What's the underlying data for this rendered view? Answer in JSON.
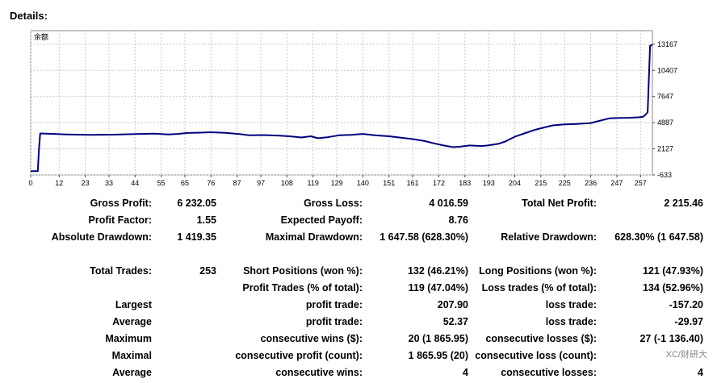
{
  "title": "Details:",
  "chart_data": {
    "type": "line",
    "title": "余额",
    "xlabel": "",
    "ylabel": "",
    "x_ticks": [
      0,
      12,
      23,
      33,
      44,
      55,
      65,
      76,
      87,
      97,
      108,
      119,
      129,
      140,
      151,
      161,
      172,
      183,
      193,
      204,
      215,
      225,
      236,
      247,
      257
    ],
    "y_ticks": [
      -633,
      2127,
      4887,
      7647,
      10407,
      13167
    ],
    "xlim": [
      0,
      262
    ],
    "ylim": [
      -633,
      14600
    ],
    "grid": true,
    "color": "#000080",
    "series": [
      {
        "points": [
          [
            0,
            -233
          ],
          [
            2,
            -233
          ],
          [
            3,
            -233
          ],
          [
            3.5,
            2150
          ],
          [
            4,
            3750
          ],
          [
            10,
            3700
          ],
          [
            15,
            3650
          ],
          [
            25,
            3600
          ],
          [
            35,
            3620
          ],
          [
            44,
            3680
          ],
          [
            52,
            3720
          ],
          [
            58,
            3640
          ],
          [
            62,
            3700
          ],
          [
            66,
            3800
          ],
          [
            70,
            3830
          ],
          [
            76,
            3880
          ],
          [
            82,
            3820
          ],
          [
            88,
            3680
          ],
          [
            92,
            3550
          ],
          [
            98,
            3580
          ],
          [
            105,
            3520
          ],
          [
            110,
            3430
          ],
          [
            114,
            3320
          ],
          [
            118,
            3450
          ],
          [
            121,
            3250
          ],
          [
            125,
            3350
          ],
          [
            130,
            3550
          ],
          [
            135,
            3600
          ],
          [
            140,
            3700
          ],
          [
            145,
            3550
          ],
          [
            151,
            3450
          ],
          [
            156,
            3300
          ],
          [
            161,
            3150
          ],
          [
            166,
            2950
          ],
          [
            170,
            2700
          ],
          [
            174,
            2480
          ],
          [
            178,
            2300
          ],
          [
            181,
            2350
          ],
          [
            185,
            2480
          ],
          [
            190,
            2420
          ],
          [
            193,
            2500
          ],
          [
            197,
            2650
          ],
          [
            200,
            2900
          ],
          [
            204,
            3400
          ],
          [
            208,
            3750
          ],
          [
            212,
            4100
          ],
          [
            216,
            4350
          ],
          [
            220,
            4600
          ],
          [
            225,
            4700
          ],
          [
            230,
            4750
          ],
          [
            236,
            4850
          ],
          [
            240,
            5100
          ],
          [
            244,
            5350
          ],
          [
            248,
            5380
          ],
          [
            252,
            5400
          ],
          [
            256,
            5450
          ],
          [
            258,
            5500
          ],
          [
            259,
            5700
          ],
          [
            260,
            6000
          ],
          [
            261,
            13000
          ],
          [
            262,
            13100
          ]
        ]
      }
    ]
  },
  "stats": {
    "gross_profit": {
      "label": "Gross Profit:",
      "value": "6 232.05"
    },
    "gross_loss": {
      "label": "Gross Loss:",
      "value": "4 016.59"
    },
    "total_net_profit": {
      "label": "Total Net Profit:",
      "value": "2 215.46"
    },
    "profit_factor": {
      "label": "Profit Factor:",
      "value": "1.55"
    },
    "expected_payoff": {
      "label": "Expected Payoff:",
      "value": "8.76"
    },
    "absolute_drawdown": {
      "label": "Absolute Drawdown:",
      "value": "1 419.35"
    },
    "maximal_drawdown": {
      "label": "Maximal Drawdown:",
      "value": "1 647.58 (628.30%)"
    },
    "relative_drawdown": {
      "label": "Relative Drawdown:",
      "value": "628.30% (1 647.58)"
    },
    "total_trades": {
      "label": "Total Trades:",
      "value": "253"
    },
    "short_positions": {
      "label": "Short Positions (won %):",
      "value": "132 (46.21%)"
    },
    "long_positions": {
      "label": "Long Positions (won %):",
      "value": "121 (47.93%)"
    },
    "profit_trades": {
      "label": "Profit Trades (% of total):",
      "value": "119 (47.04%)"
    },
    "loss_trades": {
      "label": "Loss trades (% of total):",
      "value": "134 (52.96%)"
    },
    "largest": {
      "label": "Largest"
    },
    "largest_profit": {
      "label": "profit trade:",
      "value": "207.90"
    },
    "largest_loss": {
      "label": "loss trade:",
      "value": "-157.20"
    },
    "average": {
      "label": "Average"
    },
    "average_profit": {
      "label": "profit trade:",
      "value": "52.37"
    },
    "average_loss": {
      "label": "loss trade:",
      "value": "-29.97"
    },
    "maximum": {
      "label": "Maximum"
    },
    "max_cons_wins": {
      "label": "consecutive wins ($):",
      "value": "20 (1 865.95)"
    },
    "max_cons_losses": {
      "label": "consecutive losses ($):",
      "value": "27 (-1 136.40)"
    },
    "maximal": {
      "label": "Maximal"
    },
    "maximal_cons_profit": {
      "label": "consecutive profit (count):",
      "value": "1 865.95 (20)"
    },
    "maximal_cons_loss": {
      "label": "consecutive loss (count):",
      "value": ""
    },
    "average2": {
      "label": "Average"
    },
    "avg_cons_wins": {
      "label": "consecutive wins:",
      "value": "4"
    },
    "avg_cons_losses": {
      "label": "consecutive losses:",
      "value": "4"
    }
  },
  "watermark": "XC/财研大"
}
